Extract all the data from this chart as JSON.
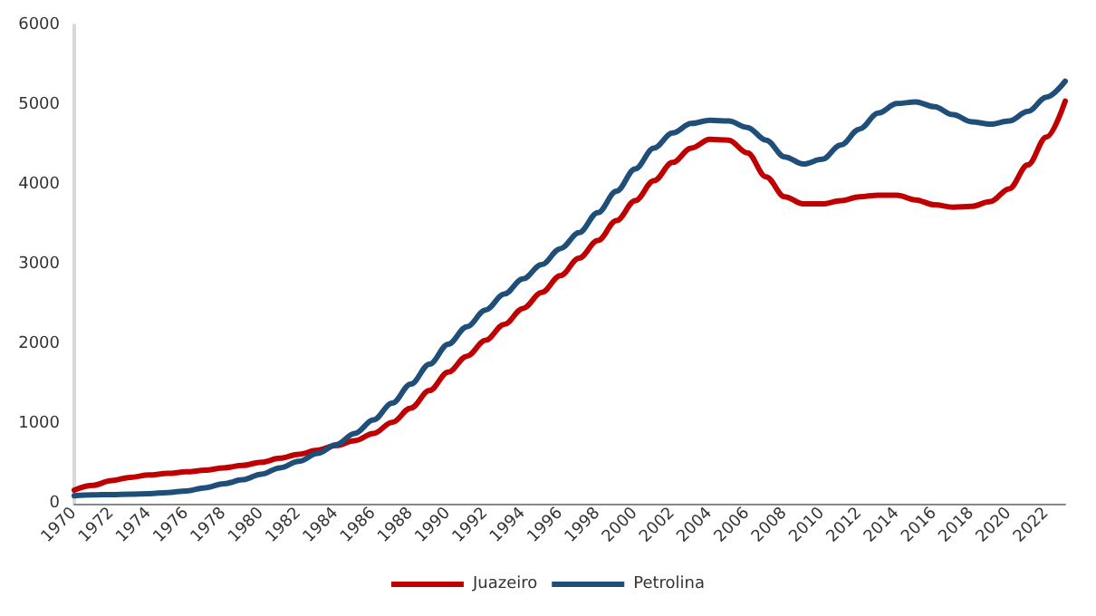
{
  "chart_data": {
    "type": "line",
    "categories": [
      "1970",
      null,
      "1972",
      null,
      "1974",
      null,
      "1976",
      null,
      "1978",
      null,
      "1980",
      null,
      "1982",
      null,
      "1984",
      null,
      "1986",
      null,
      "1988",
      null,
      "1990",
      null,
      "1992",
      null,
      "1994",
      null,
      "1996",
      null,
      "1998",
      null,
      "2000",
      null,
      "2002",
      null,
      "2004",
      null,
      "2006",
      null,
      "2008",
      null,
      "2010",
      null,
      "2012",
      null,
      "2014",
      null,
      "2016",
      null,
      "2018",
      null,
      "2020",
      null,
      "2022",
      null
    ],
    "series": [
      {
        "name": "Juazeiro",
        "color": "#c00000",
        "values": [
          170,
          230,
          290,
          330,
          360,
          380,
          400,
          420,
          450,
          480,
          520,
          570,
          620,
          670,
          730,
          790,
          880,
          1020,
          1200,
          1420,
          1650,
          1850,
          2050,
          2250,
          2450,
          2650,
          2860,
          3080,
          3300,
          3550,
          3800,
          4050,
          4280,
          4460,
          4570,
          4560,
          4400,
          4100,
          3850,
          3760,
          3760,
          3800,
          3850,
          3870,
          3870,
          3810,
          3750,
          3720,
          3730,
          3790,
          3950,
          4250,
          4600,
          5050
        ]
      },
      {
        "name": "Petrolina",
        "color": "#1f4e79",
        "values": [
          100,
          110,
          115,
          120,
          125,
          140,
          160,
          200,
          250,
          300,
          370,
          450,
          530,
          630,
          740,
          880,
          1050,
          1260,
          1500,
          1750,
          2000,
          2220,
          2430,
          2630,
          2820,
          3000,
          3200,
          3400,
          3650,
          3920,
          4200,
          4460,
          4650,
          4770,
          4810,
          4800,
          4720,
          4560,
          4350,
          4260,
          4320,
          4500,
          4700,
          4900,
          5020,
          5040,
          4980,
          4880,
          4790,
          4760,
          4800,
          4920,
          5100,
          5300
        ]
      }
    ],
    "ylim": [
      0,
      6000
    ],
    "yticks": [
      0,
      1000,
      2000,
      3000,
      4000,
      5000,
      6000
    ],
    "grid": false,
    "legend": "bottom",
    "marker": "none",
    "line_style": "solid"
  }
}
